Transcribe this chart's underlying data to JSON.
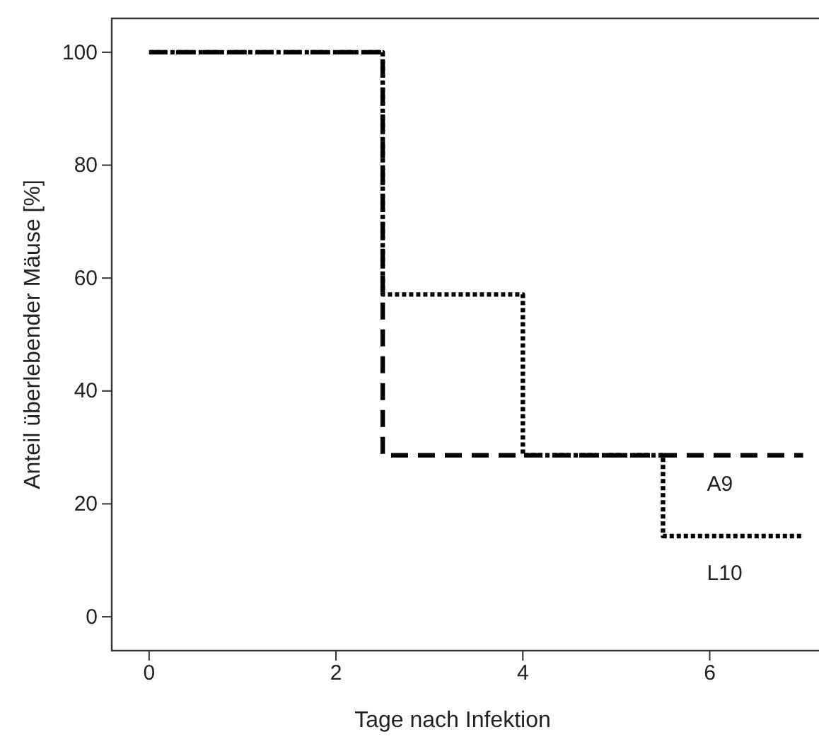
{
  "chart_data": {
    "type": "step",
    "xlabel": "Tage nach Infektion",
    "ylabel": "Anteil überlebender Mäuse [%]",
    "xlim": [
      -0.4,
      7.2
    ],
    "xticks": [
      0,
      2,
      4,
      6
    ],
    "ylim": [
      -6,
      106
    ],
    "yticks": [
      0,
      20,
      40,
      60,
      80,
      100
    ],
    "grid": false,
    "series": [
      {
        "name": "L10",
        "color": "#000000",
        "line_style": "dotted",
        "x": [
          0,
          2.5,
          4,
          5.5,
          7
        ],
        "values": [
          100,
          57.1,
          28.6,
          14.3,
          14.3
        ]
      },
      {
        "name": "A9",
        "color": "#000000",
        "line_style": "dashed",
        "x": [
          0,
          2.5,
          4,
          5.5,
          7
        ],
        "values": [
          100,
          28.6,
          28.6,
          28.6,
          28.6
        ]
      }
    ]
  }
}
